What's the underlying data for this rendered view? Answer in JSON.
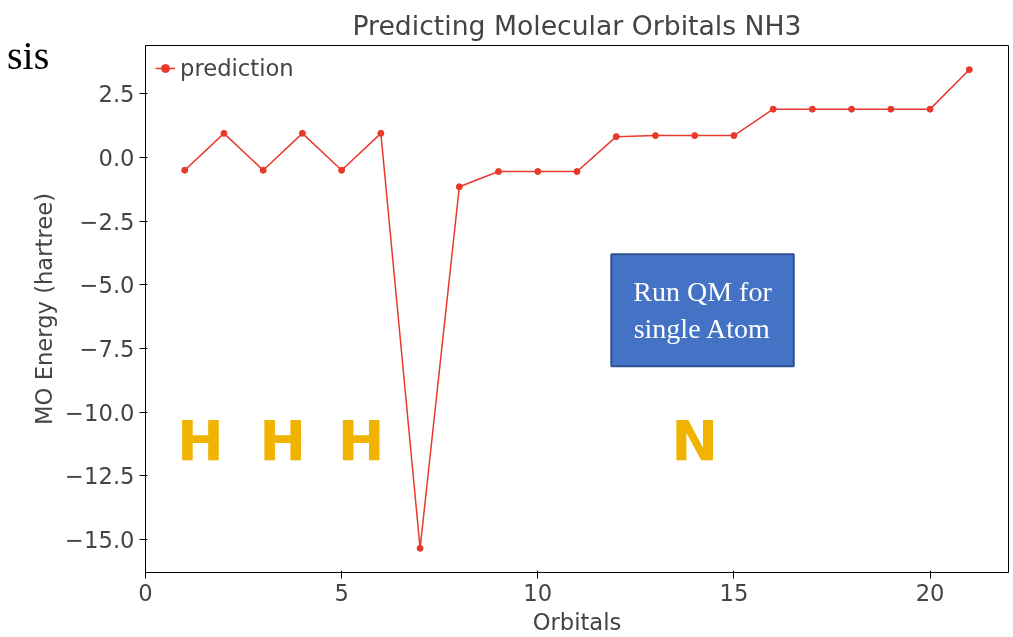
{
  "chart_data": {
    "type": "line",
    "title": "Predicting Molecular Orbitals NH3",
    "xlabel": "Orbitals",
    "ylabel": "MO Energy (hartree)",
    "x": [
      1,
      2,
      3,
      4,
      5,
      6,
      7,
      8,
      9,
      10,
      11,
      12,
      13,
      14,
      15,
      16,
      17,
      18,
      19,
      20,
      21
    ],
    "series": [
      {
        "name": "prediction",
        "color": "#e8392a",
        "values": [
          -0.5,
          0.95,
          -0.5,
          0.95,
          -0.5,
          0.95,
          -15.35,
          -1.15,
          -0.55,
          -0.55,
          -0.55,
          0.82,
          0.86,
          0.86,
          0.86,
          1.9,
          1.9,
          1.9,
          1.9,
          1.9,
          3.45
        ]
      }
    ],
    "xlim": [
      0,
      22
    ],
    "ylim": [
      -16.3,
      4.4
    ],
    "xticks": [
      0,
      5,
      10,
      15,
      20
    ],
    "yticks": [
      2.5,
      {
        "value": 0,
        "label": "0.0"
      },
      -2.5,
      {
        "value": -5,
        "label": "−5.0"
      },
      -7.5,
      {
        "value": -10,
        "label": "−10.0"
      },
      -12.5,
      {
        "value": -15,
        "label": "−15.0"
      }
    ],
    "marker": "circle",
    "line_style": "solid",
    "grid": false,
    "legend": "top left",
    "annotations": [
      "sis",
      "H",
      "H",
      "H",
      "N",
      "Run QM for\nsingle Atom"
    ]
  }
}
